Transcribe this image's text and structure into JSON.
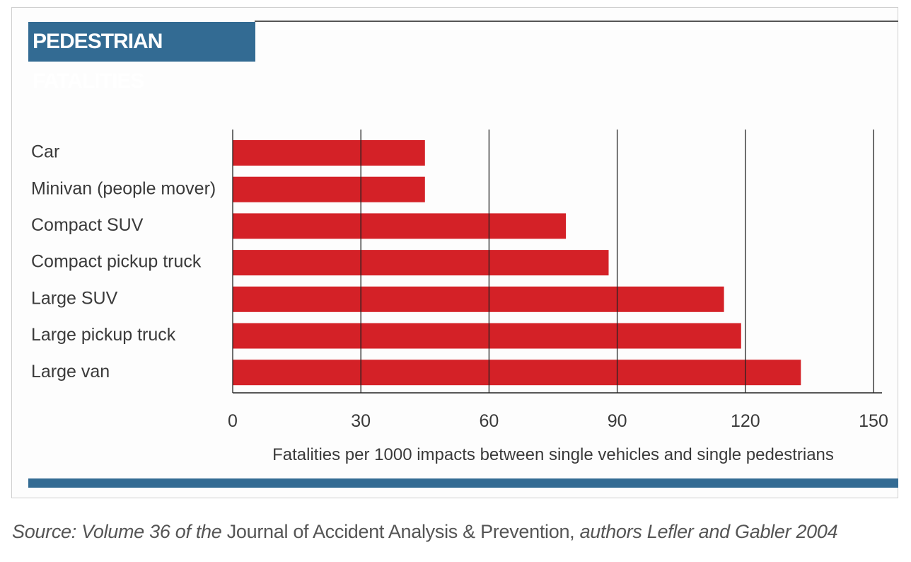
{
  "chart_data": {
    "type": "bar",
    "orientation": "horizontal",
    "title": "PEDESTRIAN FATALITIES",
    "categories": [
      "Car",
      "Minivan (people mover)",
      "Compact SUV",
      "Compact pickup truck",
      "Large SUV",
      "Large pickup truck",
      "Large van"
    ],
    "values": [
      45,
      45,
      78,
      88,
      115,
      119,
      133
    ],
    "xlabel": "Fatalities per 1000 impacts between single vehicles and single pedestrians",
    "xlim": [
      0,
      150
    ],
    "xticks": [
      "0",
      "30",
      "60",
      "90",
      "120",
      "150"
    ],
    "grid": true,
    "bar_color": "#d42127"
  },
  "source": {
    "prefix": "Source: Volume 36 of the",
    "journal": "Journal of Accident Analysis & Prevention,",
    "suffix": "authors Lefler and Gabler 2004"
  },
  "colors": {
    "accent": "#336b93",
    "bar": "#d42127"
  }
}
